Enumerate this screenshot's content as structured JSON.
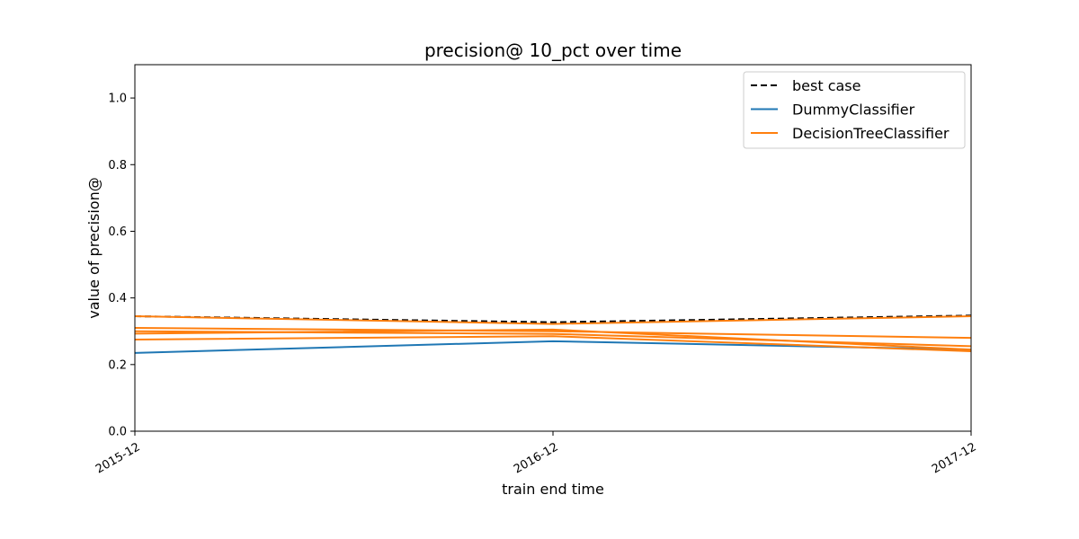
{
  "chart_data": {
    "type": "line",
    "title": "precision@ 10_pct over time",
    "xlabel": "train end time",
    "ylabel": "value of precision@",
    "categories": [
      "2015-12",
      "2016-12",
      "2017-12"
    ],
    "ylim": [
      0,
      1.1
    ],
    "yticks": [
      0.0,
      0.2,
      0.4,
      0.6,
      0.8,
      1.0
    ],
    "ytick_labels": [
      "0.0",
      "0.2",
      "0.4",
      "0.6",
      "0.8",
      "1.0"
    ],
    "grid": false,
    "legend": {
      "placement": "top-right",
      "entries": [
        {
          "label": "best case",
          "color": "#000000",
          "style": "dashed"
        },
        {
          "label": "DummyClassifier",
          "color": "#1f77b4",
          "style": "solid"
        },
        {
          "label": "DecisionTreeClassifier",
          "color": "#ff7f0e",
          "style": "solid"
        }
      ]
    },
    "series": [
      {
        "name": "best case",
        "group": "best case",
        "color": "#000000",
        "style": "dashed",
        "values": [
          0.345,
          0.327,
          0.347
        ]
      },
      {
        "name": "DummyClassifier",
        "group": "DummyClassifier",
        "color": "#1f77b4",
        "style": "solid",
        "values": [
          0.235,
          0.27,
          0.245
        ]
      },
      {
        "name": "DecisionTreeClassifier",
        "group": "DecisionTreeClassifier",
        "color": "#ff7f0e",
        "style": "solid",
        "values": [
          0.345,
          0.322,
          0.345
        ]
      },
      {
        "name": "DecisionTreeClassifier",
        "group": "DecisionTreeClassifier",
        "color": "#ff7f0e",
        "style": "solid",
        "values": [
          0.31,
          0.3,
          0.28
        ]
      },
      {
        "name": "DecisionTreeClassifier",
        "group": "DecisionTreeClassifier",
        "color": "#ff7f0e",
        "style": "solid",
        "values": [
          0.3,
          0.292,
          0.255
        ]
      },
      {
        "name": "DecisionTreeClassifier",
        "group": "DecisionTreeClassifier",
        "color": "#ff7f0e",
        "style": "solid",
        "values": [
          0.275,
          0.285,
          0.24
        ]
      },
      {
        "name": "DecisionTreeClassifier",
        "group": "DecisionTreeClassifier",
        "color": "#ff7f0e",
        "style": "solid",
        "values": [
          0.293,
          0.305,
          0.245
        ]
      }
    ]
  }
}
